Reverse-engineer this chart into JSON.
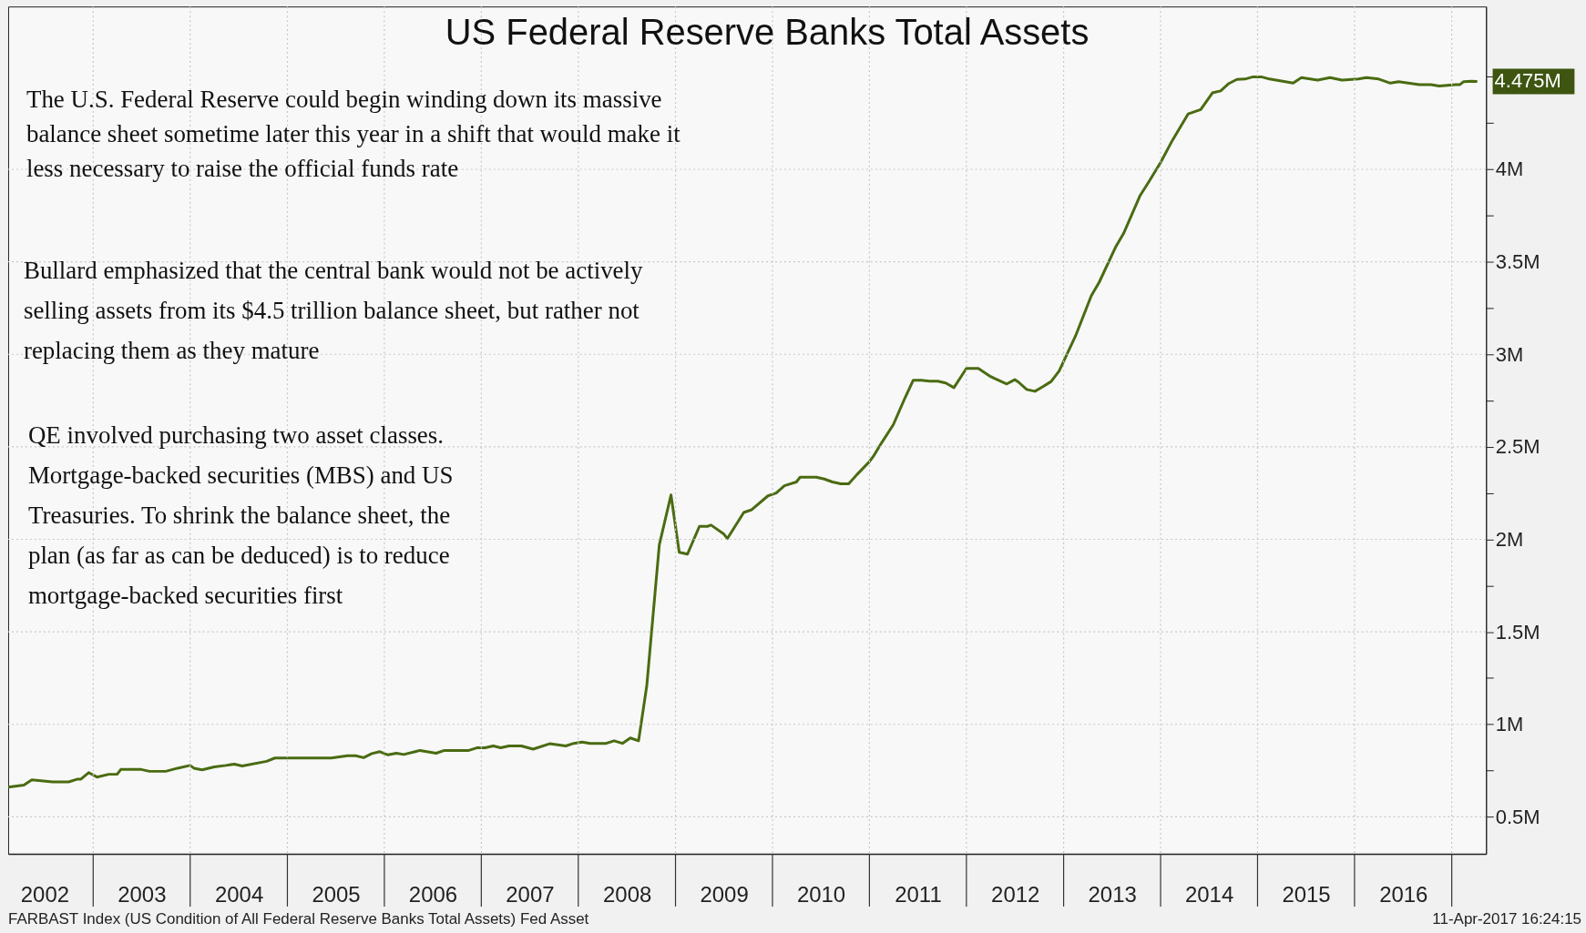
{
  "chart_data": {
    "type": "line",
    "title": "US Federal Reserve Banks Total Assets",
    "x": [
      "2002-02-15",
      "2002-04-15",
      "2002-05-15",
      "2002-08-01",
      "2002-10-01",
      "2002-11-01",
      "2002-11-15",
      "2002-12-15",
      "2003-01-15",
      "2003-03-01",
      "2003-04-01",
      "2003-04-15",
      "2003-07-01",
      "2003-08-01",
      "2003-10-01",
      "2003-11-15",
      "2004-01-01",
      "2004-01-15",
      "2004-02-15",
      "2004-04-01",
      "2004-05-15",
      "2004-06-15",
      "2004-07-15",
      "2004-10-15",
      "2004-11-15",
      "2005-06-15",
      "2005-08-15",
      "2005-09-15",
      "2005-10-15",
      "2005-11-15",
      "2005-12-15",
      "2006-01-15",
      "2006-02-15",
      "2006-03-15",
      "2006-05-01",
      "2006-05-15",
      "2006-07-15",
      "2006-08-15",
      "2006-11-15",
      "2006-12-15",
      "2007-01-15",
      "2007-02-15",
      "2007-03-15",
      "2007-04-15",
      "2007-06-01",
      "2007-07-15",
      "2007-09-15",
      "2007-11-15",
      "2007-12-15",
      "2008-01-15",
      "2008-02-15",
      "2008-04-15",
      "2008-05-15",
      "2008-06-15",
      "2008-07-15",
      "2008-08-15",
      "2008-09-15",
      "2008-11-01",
      "2008-12-15",
      "2009-01-15",
      "2009-02-15",
      "2009-04-01",
      "2009-05-01",
      "2009-05-15",
      "2009-07-01",
      "2009-07-15",
      "2009-09-15",
      "2009-10-15",
      "2009-12-15",
      "2010-01-15",
      "2010-02-15",
      "2010-04-01",
      "2010-04-15",
      "2010-06-15",
      "2010-07-15",
      "2010-08-15",
      "2010-09-15",
      "2010-10-15",
      "2010-11-15",
      "2011-01-01",
      "2011-01-15",
      "2011-02-15",
      "2011-04-01",
      "2011-05-15",
      "2011-06-15",
      "2011-07-15",
      "2011-08-15",
      "2011-09-15",
      "2011-10-15",
      "2011-11-15",
      "2012-01-01",
      "2012-02-15",
      "2012-04-01",
      "2012-04-15",
      "2012-06-01",
      "2012-07-01",
      "2012-07-15",
      "2012-08-15",
      "2012-09-15",
      "2012-10-15",
      "2012-11-15",
      "2012-12-15",
      "2013-02-15",
      "2013-04-15",
      "2013-05-15",
      "2013-07-15",
      "2013-08-15",
      "2013-10-15",
      "2013-11-15",
      "2014-01-01",
      "2014-02-15",
      "2014-04-15",
      "2014-06-01",
      "2014-07-15",
      "2014-08-15",
      "2014-09-15",
      "2014-10-15",
      "2014-11-15",
      "2014-12-15",
      "2015-01-15",
      "2015-02-15",
      "2015-05-15",
      "2015-06-15",
      "2015-08-15",
      "2015-10-01",
      "2015-11-15",
      "2016-01-15",
      "2016-02-15",
      "2016-04-01",
      "2016-05-15",
      "2016-06-15",
      "2016-09-01",
      "2016-10-15",
      "2016-11-15",
      "2017-01-15",
      "2017-02-01",
      "2017-02-15",
      "2017-03-15",
      "2017-04-07"
    ],
    "series": [
      {
        "color": "#4a6b12",
        "values": [
          0.66,
          0.672,
          0.7,
          0.689,
          0.689,
          0.703,
          0.703,
          0.739,
          0.715,
          0.73,
          0.73,
          0.756,
          0.756,
          0.746,
          0.746,
          0.763,
          0.778,
          0.763,
          0.754,
          0.77,
          0.778,
          0.785,
          0.775,
          0.8,
          0.818,
          0.818,
          0.83,
          0.83,
          0.82,
          0.842,
          0.852,
          0.835,
          0.844,
          0.837,
          0.854,
          0.859,
          0.844,
          0.859,
          0.859,
          0.873,
          0.873,
          0.883,
          0.873,
          0.883,
          0.883,
          0.866,
          0.895,
          0.883,
          0.897,
          0.904,
          0.897,
          0.897,
          0.911,
          0.897,
          0.926,
          0.911,
          1.21,
          1.97,
          2.24,
          1.93,
          1.92,
          2.07,
          2.07,
          2.077,
          2.03,
          2.004,
          2.145,
          2.16,
          2.235,
          2.25,
          2.29,
          2.31,
          2.336,
          2.336,
          2.326,
          2.31,
          2.3,
          2.3,
          2.35,
          2.42,
          2.447,
          2.52,
          2.62,
          2.765,
          2.86,
          2.86,
          2.855,
          2.855,
          2.845,
          2.82,
          2.924,
          2.924,
          2.88,
          2.87,
          2.84,
          2.863,
          2.85,
          2.81,
          2.8,
          2.825,
          2.853,
          2.91,
          3.1,
          3.316,
          3.39,
          3.578,
          3.654,
          3.856,
          3.926,
          4.037,
          4.158,
          4.3,
          4.323,
          4.413,
          4.424,
          4.464,
          4.486,
          4.488,
          4.5,
          4.5,
          4.488,
          4.466,
          4.496,
          4.482,
          4.496,
          4.482,
          4.488,
          4.496,
          4.488,
          4.466,
          4.474,
          4.458,
          4.458,
          4.45,
          4.458,
          4.458,
          4.474,
          4.476,
          4.475
        ]
      }
    ],
    "xlim": [
      "2002-02-15",
      "2017-05-10"
    ],
    "xticks": [
      {
        "value": "2003-01-01",
        "label": null
      },
      {
        "value": "2004-01-01",
        "label": null
      },
      {
        "value": "2005-01-01",
        "label": null
      },
      {
        "value": "2006-01-01",
        "label": null
      },
      {
        "value": "2007-01-01",
        "label": null
      },
      {
        "value": "2008-01-01",
        "label": null
      },
      {
        "value": "2009-01-01",
        "label": null
      },
      {
        "value": "2010-01-01",
        "label": null
      },
      {
        "value": "2011-01-01",
        "label": null
      },
      {
        "value": "2012-01-01",
        "label": null
      },
      {
        "value": "2013-01-01",
        "label": null
      },
      {
        "value": "2014-01-01",
        "label": null
      },
      {
        "value": "2015-01-01",
        "label": null
      },
      {
        "value": "2016-01-01",
        "label": null
      },
      {
        "value": "2017-01-01",
        "label": null
      },
      {
        "value": "2002-07-02",
        "label": "2002"
      },
      {
        "value": "2003-07-02",
        "label": "2003"
      },
      {
        "value": "2004-07-02",
        "label": "2004"
      },
      {
        "value": "2005-07-02",
        "label": "2005"
      },
      {
        "value": "2006-07-02",
        "label": "2006"
      },
      {
        "value": "2007-07-02",
        "label": "2007"
      },
      {
        "value": "2008-07-02",
        "label": "2008"
      },
      {
        "value": "2009-07-02",
        "label": "2009"
      },
      {
        "value": "2010-07-02",
        "label": "2010"
      },
      {
        "value": "2011-07-02",
        "label": "2011"
      },
      {
        "value": "2012-07-02",
        "label": "2012"
      },
      {
        "value": "2013-07-02",
        "label": "2013"
      },
      {
        "value": "2014-07-02",
        "label": "2014"
      },
      {
        "value": "2015-07-02",
        "label": "2015"
      },
      {
        "value": "2016-07-02",
        "label": "2016"
      }
    ],
    "ylim": [
      0.3,
      4.88
    ],
    "yticks": [
      {
        "value": 0.5,
        "label": "0.5M"
      },
      {
        "value": 0.75,
        "label": null
      },
      {
        "value": 1,
        "label": "1M"
      },
      {
        "value": 1.25,
        "label": null
      },
      {
        "value": 1.5,
        "label": "1.5M"
      },
      {
        "value": 1.75,
        "label": null
      },
      {
        "value": 2,
        "label": "2M"
      },
      {
        "value": 2.25,
        "label": null
      },
      {
        "value": 2.5,
        "label": "2.5M"
      },
      {
        "value": 2.75,
        "label": null
      },
      {
        "value": 3,
        "label": "3M"
      },
      {
        "value": 3.25,
        "label": null
      },
      {
        "value": 3.5,
        "label": "3.5M"
      },
      {
        "value": 3.75,
        "label": null
      },
      {
        "value": 4,
        "label": "4M"
      },
      {
        "value": 4.25,
        "label": null
      },
      {
        "value": 4.5,
        "label": null
      }
    ],
    "grid": true,
    "annotations": [
      "The U.S. Federal Reserve could begin winding down its massive\nbalance sheet sometime later this year in a shift that would make it\nless necessary to raise the official funds rate",
      "Bullard emphasized that the central bank would not be actively\nselling assets from its $4.5 trillion balance sheet, but rather not\nreplacing them as they mature",
      "QE involved purchasing two asset classes.\nMortgage-backed securities (MBS) and US\nTreasuries. To shrink the balance sheet, the\nplan (as far as can be deduced) is to reduce\nmortgage-backed securities first",
      "FARBAST Index (US Condition of All Federal Reserve Banks Total Assets) Fed Asset",
      "11-Apr-2017 16:24:15",
      {
        "text": "4.475M",
        "x": "2017-04-07",
        "y": 4.475
      }
    ]
  }
}
